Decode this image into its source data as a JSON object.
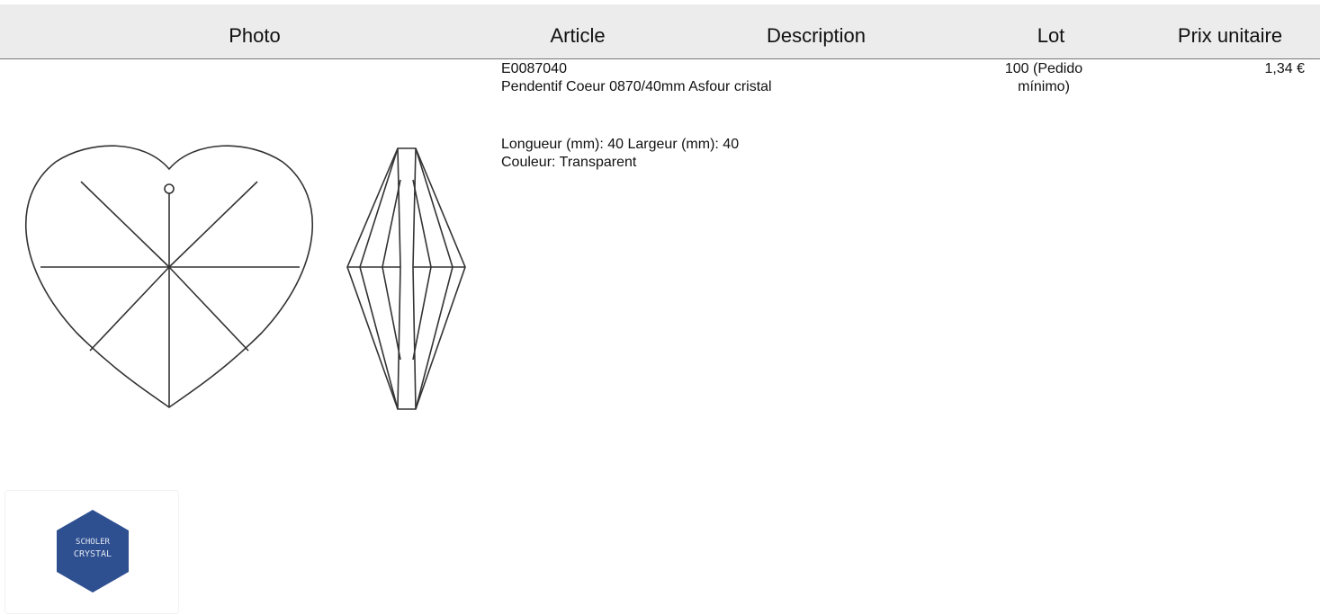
{
  "table": {
    "headers": [
      "Photo",
      "Article",
      "Description",
      "Lot",
      "Prix unitaire"
    ],
    "rows": [
      {
        "article": "E0087040",
        "description": "Pendentif Coeur 0870/40mm Asfour cristal",
        "dimensions": "Longueur (mm): 40 Largeur (mm): 40",
        "color": "Couleur: Transparent",
        "lot": "100 (Pedido mínimo)",
        "price": "1,34 €"
      }
    ]
  },
  "logo": {
    "lines": [
      "SCHOLER",
      "CRYSTAL"
    ]
  }
}
